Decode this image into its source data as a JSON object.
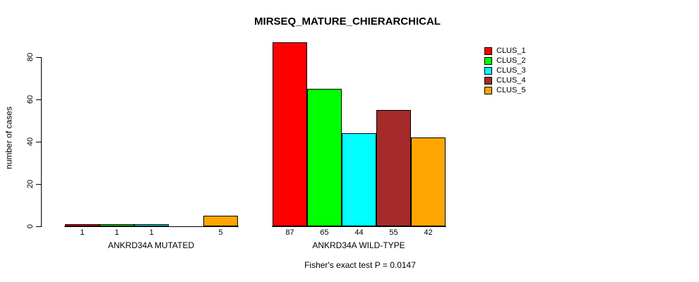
{
  "title": "MIRSEQ_MATURE_CHIERARCHICAL",
  "footer_note": "Fisher's exact test P = 0.0147",
  "chart_data": {
    "type": "bar",
    "title": "MIRSEQ_MATURE_CHIERARCHICAL",
    "xlabel": "",
    "ylabel": "number of cases",
    "ylim": [
      0,
      80
    ],
    "yticks": [
      0,
      20,
      40,
      60,
      80
    ],
    "grid": false,
    "legend_position": "right",
    "series": [
      {
        "name": "CLUS_1",
        "color": "#FF0000"
      },
      {
        "name": "CLUS_2",
        "color": "#00FF00"
      },
      {
        "name": "CLUS_3",
        "color": "#00FFFF"
      },
      {
        "name": "CLUS_4",
        "color": "#A52A2A"
      },
      {
        "name": "CLUS_5",
        "color": "#FFA500"
      }
    ],
    "groups": [
      {
        "label": "ANKRD34A MUTATED",
        "values": [
          1,
          1,
          1,
          0,
          5
        ],
        "bar_labels": [
          "1",
          "1",
          "1",
          "",
          "5"
        ]
      },
      {
        "label": "ANKRD34A WILD-TYPE",
        "values": [
          87,
          65,
          44,
          55,
          42
        ],
        "bar_labels": [
          "87",
          "65",
          "44",
          "55",
          "42"
        ]
      }
    ],
    "annotation": "Fisher's exact test P = 0.0147"
  }
}
